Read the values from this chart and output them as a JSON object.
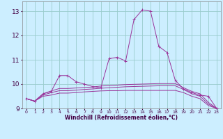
{
  "title": "",
  "xlabel": "Windchill (Refroidissement éolien,°C)",
  "ylabel": "",
  "bg_color": "#cceeff",
  "grid_color": "#99cccc",
  "line_color": "#993399",
  "xlim": [
    -0.5,
    23.5
  ],
  "ylim": [
    9.0,
    13.4
  ],
  "yticks": [
    9,
    10,
    11,
    12,
    13
  ],
  "xticks": [
    0,
    1,
    2,
    3,
    4,
    5,
    6,
    7,
    8,
    9,
    10,
    11,
    12,
    13,
    14,
    15,
    16,
    17,
    18,
    19,
    20,
    21,
    22,
    23
  ],
  "series": [
    {
      "x": [
        0,
        1,
        2,
        3,
        4,
        5,
        6,
        7,
        8,
        9,
        10,
        11,
        12,
        13,
        14,
        15,
        16,
        17,
        18,
        19,
        20,
        21,
        22,
        23
      ],
      "y": [
        9.4,
        9.3,
        9.6,
        9.7,
        10.35,
        10.35,
        10.1,
        10.0,
        9.9,
        9.85,
        11.05,
        11.1,
        10.95,
        12.65,
        13.05,
        13.0,
        11.55,
        11.3,
        10.15,
        9.8,
        9.65,
        9.55,
        9.5,
        9.0
      ],
      "marker": true
    },
    {
      "x": [
        0,
        1,
        2,
        3,
        4,
        5,
        6,
        7,
        8,
        9,
        10,
        11,
        12,
        13,
        14,
        15,
        16,
        17,
        18,
        19,
        20,
        21,
        22,
        23
      ],
      "y": [
        9.4,
        9.3,
        9.6,
        9.72,
        9.82,
        9.82,
        9.84,
        9.86,
        9.88,
        9.92,
        9.94,
        9.96,
        9.98,
        9.99,
        10.0,
        10.01,
        10.02,
        10.02,
        10.02,
        9.85,
        9.7,
        9.6,
        9.25,
        9.0
      ],
      "marker": false
    },
    {
      "x": [
        0,
        1,
        2,
        3,
        4,
        5,
        6,
        7,
        8,
        9,
        10,
        11,
        12,
        13,
        14,
        15,
        16,
        17,
        18,
        19,
        20,
        21,
        22,
        23
      ],
      "y": [
        9.4,
        9.3,
        9.55,
        9.65,
        9.73,
        9.73,
        9.75,
        9.78,
        9.8,
        9.83,
        9.85,
        9.87,
        9.89,
        9.9,
        9.91,
        9.92,
        9.93,
        9.93,
        9.93,
        9.78,
        9.6,
        9.5,
        9.18,
        9.0
      ],
      "marker": false
    },
    {
      "x": [
        0,
        1,
        2,
        3,
        4,
        5,
        6,
        7,
        8,
        9,
        10,
        11,
        12,
        13,
        14,
        15,
        16,
        17,
        18,
        19,
        20,
        21,
        22,
        23
      ],
      "y": [
        9.4,
        9.3,
        9.5,
        9.55,
        9.63,
        9.63,
        9.65,
        9.68,
        9.7,
        9.72,
        9.73,
        9.73,
        9.74,
        9.74,
        9.74,
        9.74,
        9.74,
        9.74,
        9.74,
        9.65,
        9.5,
        9.4,
        9.12,
        9.0
      ],
      "marker": false
    }
  ]
}
